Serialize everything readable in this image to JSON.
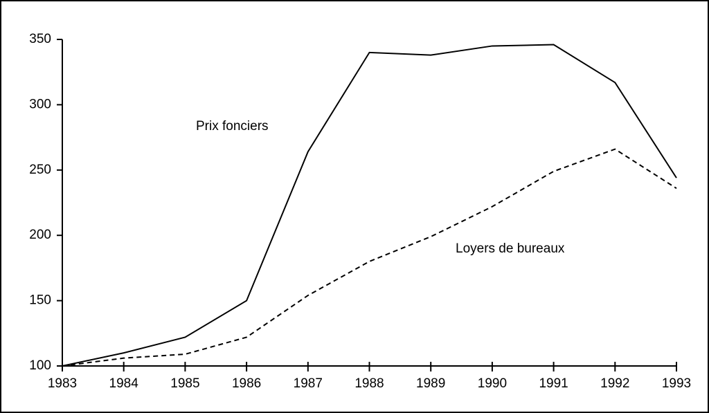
{
  "chart_data": {
    "type": "line",
    "x": [
      1983,
      1984,
      1985,
      1986,
      1987,
      1988,
      1989,
      1990,
      1991,
      1992,
      1993
    ],
    "xlim": [
      1983,
      1993
    ],
    "xticks": [
      1983,
      1984,
      1985,
      1986,
      1987,
      1988,
      1989,
      1990,
      1991,
      1992,
      1993
    ],
    "ylim": [
      100,
      350
    ],
    "yticks": [
      100,
      150,
      200,
      250,
      300,
      350
    ],
    "grid": false,
    "series": [
      {
        "name": "Prix fonciers",
        "color": "#000000",
        "line_style": "solid",
        "values": [
          100,
          110,
          122,
          150,
          264,
          340,
          338,
          345,
          346,
          317,
          244
        ]
      },
      {
        "name": "Loyers de bureaux",
        "color": "#000000",
        "line_style": "dashed",
        "values": [
          100,
          106,
          109,
          122,
          154,
          180,
          199,
          222,
          249,
          266,
          236
        ]
      }
    ]
  }
}
